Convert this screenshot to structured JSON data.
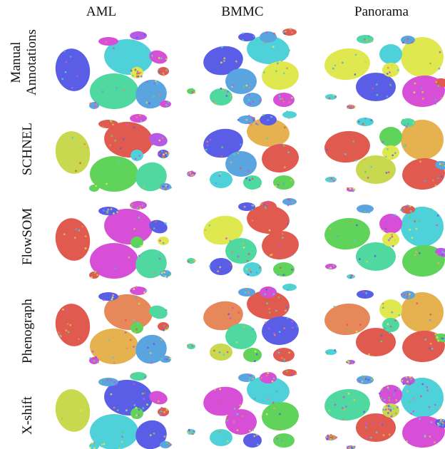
{
  "chart_data": {
    "type": "scatter",
    "columns": [
      "AML",
      "BMMC",
      "Panorama"
    ],
    "rows": [
      [
        "Manual",
        "Annotations"
      ],
      [
        "SCHNEL"
      ],
      [
        "FlowSOM"
      ],
      [
        "Phenograph"
      ],
      [
        "X-shift"
      ]
    ],
    "palette": [
      "#5a5ee6",
      "#4fd1d9",
      "#4fd8a0",
      "#5aa4e0",
      "#d64fd6",
      "#5fd35a",
      "#e05a4f",
      "#e6b14f",
      "#c8d94f",
      "#b45ae6",
      "#e0e84f",
      "#e6885a"
    ]
  }
}
